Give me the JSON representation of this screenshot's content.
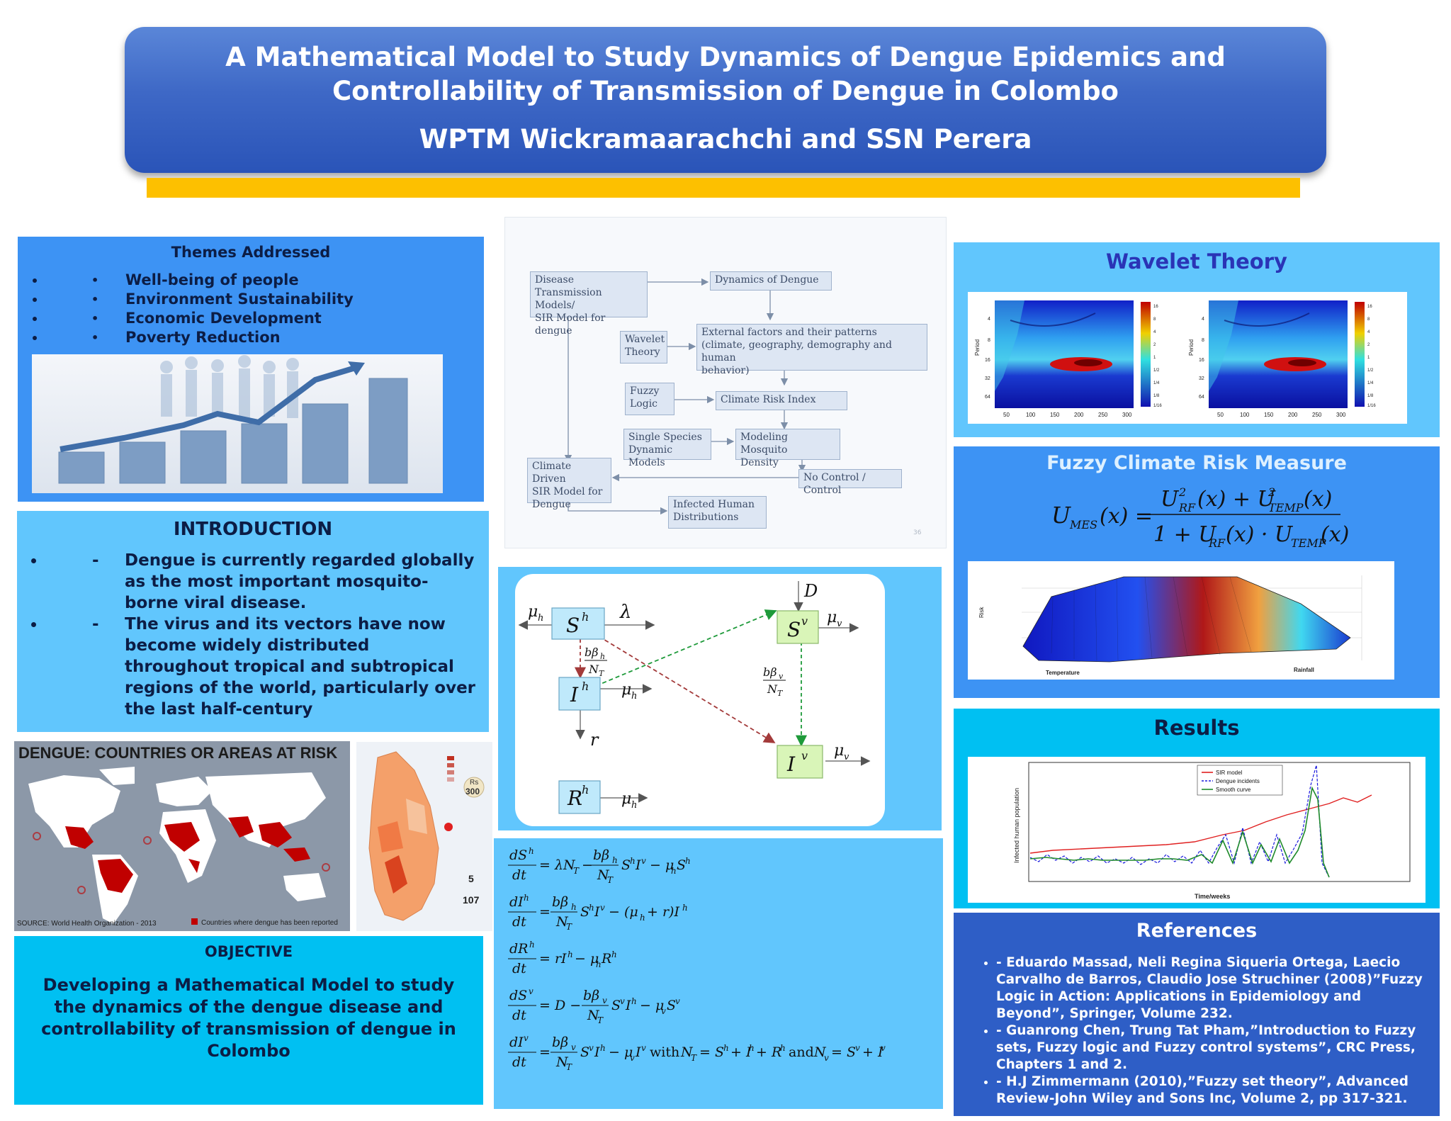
{
  "header": {
    "title_line1": "A Mathematical Model to Study Dynamics of Dengue Epidemics and",
    "title_line2": "Controllability of Transmission of Dengue in Colombo",
    "authors": "WPTM Wickramaarachchi and SSN Perera"
  },
  "themes": {
    "title": "Themes Addressed",
    "items": [
      "Well-being of people",
      "Environment Sustainability",
      "Economic Development",
      "Poverty Reduction"
    ]
  },
  "introduction": {
    "title": "INTRODUCTION",
    "items": [
      "Dengue is currently regarded globally as the most important mosquito-borne viral disease.",
      "The virus and its vectors have now become widely distributed throughout tropical and subtropical regions of the world, particularly over the last half-century"
    ]
  },
  "world_map": {
    "title": "DENGUE: COUNTRIES OR AREAS AT RISK",
    "source": "SOURCE: World Health Organization - 2013",
    "legend": "Countries where dengue has been reported",
    "colors": {
      "land": "#ffffff",
      "sea": "#8c98a8",
      "risk": "#c00000"
    }
  },
  "sl_map": {
    "badge_currency": "Rs",
    "badge_amount": "300",
    "stat1": "5",
    "stat2": "107"
  },
  "objective": {
    "title": "OBJECTIVE",
    "body": "Developing a Mathematical Model to study the dynamics of the dengue disease and controllability of transmission of dengue in Colombo"
  },
  "flowchart": {
    "boxes": {
      "disease_models": [
        "Disease Transmission",
        "Models/",
        "SIR Model for dengue"
      ],
      "dynamics": [
        "Dynamics of Dengue"
      ],
      "wavelet": [
        "Wavelet",
        "Theory"
      ],
      "external": [
        "External factors and their patterns",
        "(climate, geography, demography and human",
        "behavior)"
      ],
      "fuzzy": [
        "Fuzzy",
        "Logic"
      ],
      "climate_risk": [
        "Climate Risk Index"
      ],
      "single_species": [
        "Single Species",
        "Dynamic Models"
      ],
      "mosquito": [
        "Modeling Mosquito",
        "Density"
      ],
      "climate_sir": [
        "Climate Driven",
        "SIR Model for",
        "Dengue"
      ],
      "control": [
        "No Control / Control"
      ],
      "infected": [
        "Infected Human",
        "Distributions"
      ]
    },
    "page_number": "36"
  },
  "sir_diagram": {
    "nodes": {
      "sh": "S",
      "ih": "I",
      "rh": "R",
      "sv": "S",
      "iv": "I"
    },
    "node_sup": {
      "sh": "h",
      "ih": "h",
      "rh": "h",
      "sv": "v",
      "iv": "v"
    },
    "labels": {
      "mu": "μ",
      "mu_h_sub": "h",
      "mu_v_sub": "v",
      "lambda": "λ",
      "r": "r",
      "D": "D",
      "beta_h_num": "bβ",
      "beta_h_sub": "h",
      "beta_v_num": "bβ",
      "beta_v_sub": "v",
      "den": "N",
      "den_sub": "T"
    },
    "colors": {
      "host": "#bfe9fb",
      "vector": "#d9f5b8",
      "host_to_vector": "#1e9a3a",
      "vector_to_host": "#a33a3a"
    }
  },
  "wavelet": {
    "title": "Wavelet Theory",
    "y_label": "Period",
    "x_ticks": [
      "50",
      "100",
      "150",
      "200",
      "250",
      "300"
    ],
    "y_ticks": [
      "4",
      "8",
      "16",
      "32",
      "64"
    ],
    "scale_ticks": [
      "16",
      "8",
      "4",
      "2",
      "1",
      "1/2",
      "1/4",
      "1/8",
      "1/16"
    ]
  },
  "fuzzy": {
    "title": "Fuzzy Climate Risk Measure",
    "x_label": "Temperature",
    "y_label": "Rainfall",
    "z_label": "Risk"
  },
  "results": {
    "title": "Results",
    "y_label": "Infected human population",
    "x_label": "Time/weeks",
    "legend": [
      "SIR model",
      "Dengue incidents",
      "Smooth curve"
    ],
    "colors": {
      "sir": "#e02020",
      "dengue": "#1a1add",
      "smooth": "#1e8a2a"
    }
  },
  "references": {
    "title": "References",
    "items": [
      "- Eduardo Massad, Neli Regina Siqueria Ortega,  Laecio Carvalho de Barros, Claudio Jose Struchiner (2008)”Fuzzy Logic in Action: Applications  in Epidemiology and Beyond”, Springer, Volume 232.",
      "- Guanrong Chen, Trung Tat Pham,”Introduction to Fuzzy sets, Fuzzy logic and Fuzzy control systems”, CRC Press, Chapters 1 and 2.",
      "- H.J Zimmermann (2010),”Fuzzy set theory”, Advanced Review-John Wiley and Sons Inc, Volume 2, pp 317-321."
    ]
  }
}
